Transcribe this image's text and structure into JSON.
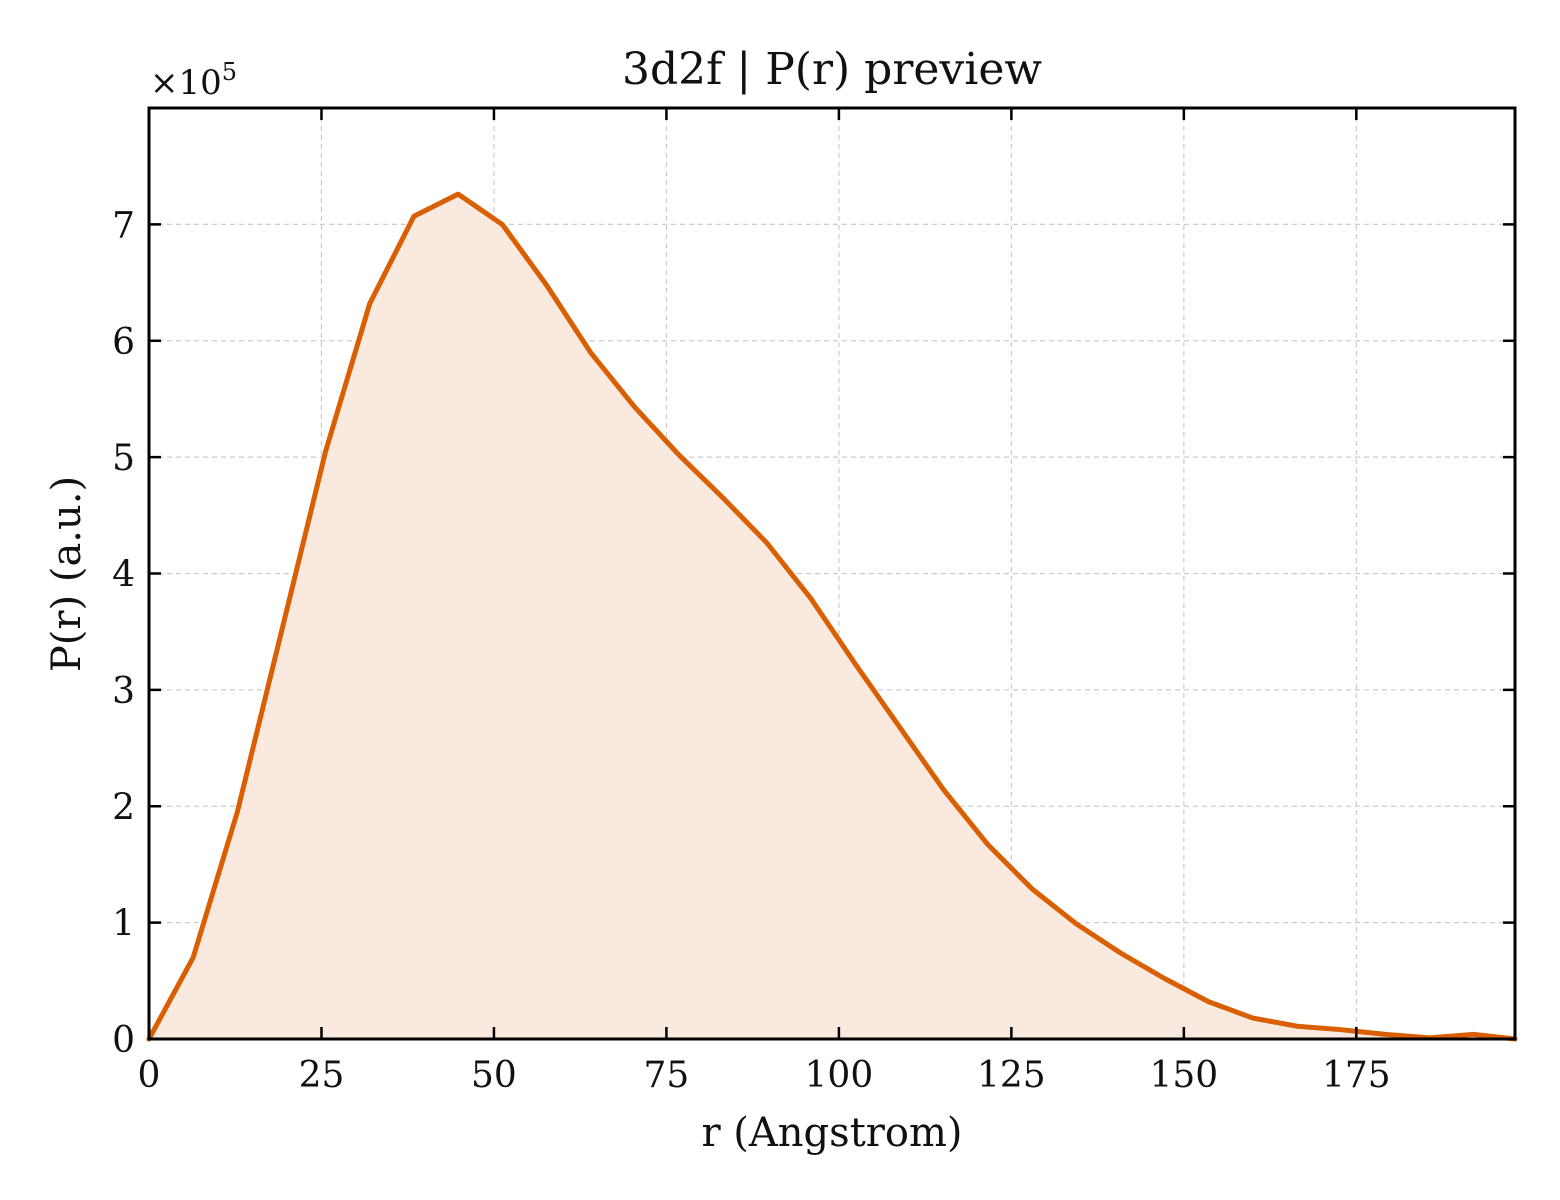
{
  "chart_data": {
    "type": "area",
    "title": "3d2f | P(r) preview",
    "xlabel": "r (Angstrom)",
    "ylabel": "P(r) (a.u.)",
    "y_multiplier_label": "×10",
    "y_multiplier_exponent": "5",
    "xlim": [
      0,
      198
    ],
    "ylim": [
      0,
      8.0
    ],
    "y_scale": 100000,
    "grid": true,
    "x_ticks": [
      0,
      25,
      50,
      75,
      100,
      125,
      150,
      175
    ],
    "x_tick_labels": [
      "0",
      "25",
      "50",
      "75",
      "100",
      "125",
      "150",
      "175"
    ],
    "y_ticks": [
      0,
      1,
      2,
      3,
      4,
      5,
      6,
      7
    ],
    "y_tick_labels": [
      "0",
      "1",
      "2",
      "3",
      "4",
      "5",
      "6",
      "7"
    ],
    "colors": {
      "line": "#d95f02",
      "fill": "#f9e9de"
    },
    "series": [
      {
        "x": [
          0,
          6.4,
          12.8,
          19.2,
          25.6,
          32.0,
          38.4,
          44.8,
          51.2,
          57.6,
          64.0,
          70.4,
          76.8,
          83.2,
          89.6,
          96.0,
          102.4,
          108.8,
          115.2,
          121.6,
          128.0,
          134.4,
          140.8,
          147.2,
          153.6,
          160.0,
          166.4,
          172.8,
          179.2,
          185.6,
          192.0,
          198.0
        ],
        "y": [
          0.0,
          0.7,
          1.95,
          3.5,
          5.05,
          6.32,
          7.07,
          7.26,
          7.0,
          6.48,
          5.9,
          5.43,
          5.02,
          4.65,
          4.26,
          3.78,
          3.22,
          2.68,
          2.14,
          1.67,
          1.29,
          0.99,
          0.74,
          0.52,
          0.32,
          0.18,
          0.11,
          0.08,
          0.04,
          0.01,
          0.04,
          0.0
        ]
      }
    ]
  }
}
